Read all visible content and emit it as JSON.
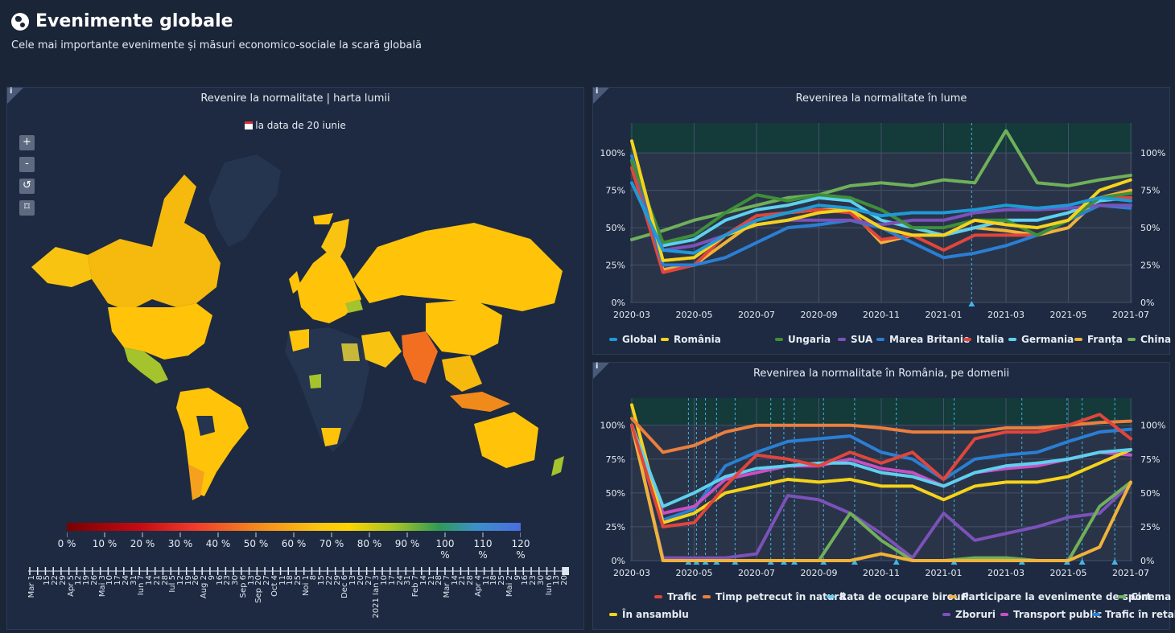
{
  "header": {
    "title": "Evenimente globale",
    "subtitle": "Cele mai importante evenimente și măsuri economico-sociale la scară globală"
  },
  "map_panel": {
    "info": "i",
    "title": "Revenire la normalitate | harta lumii",
    "date_label": "la data de 20 iunie",
    "zoom": {
      "in": "+",
      "out": "-",
      "reset": "↺",
      "fit": "⌑"
    },
    "legend_labels": [
      "0 %",
      "10 %",
      "20 %",
      "30 %",
      "40 %",
      "50 %",
      "60 %",
      "70 %",
      "80 %",
      "90 %",
      "100 %",
      "110 %",
      "120 %"
    ],
    "timeline_labels": [
      "Mar 1",
      "8",
      "15",
      "22",
      "29",
      "Apr 5",
      "12",
      "19",
      "26",
      "Mai 3",
      "10",
      "17",
      "24",
      "31",
      "Iun 7",
      "14",
      "21",
      "28",
      "Iul 5",
      "12",
      "19",
      "26",
      "Aug 2",
      "9",
      "16",
      "23",
      "30",
      "Sep 6",
      "13",
      "Sep 20",
      "27",
      "Oct 4",
      "11",
      "18",
      "25",
      "Noi 1",
      "8",
      "15",
      "22",
      "29",
      "Dec 6",
      "13",
      "20",
      "27",
      "2021 Ian 3",
      "10",
      "17",
      "24",
      "31",
      "Feb 7",
      "14",
      "21",
      "28",
      "Mar 7",
      "14",
      "21",
      "28",
      "Apr 4",
      "11",
      "18",
      "25",
      "Mai 2",
      "9",
      "16",
      "23",
      "30",
      "Iun 6",
      "13",
      "20"
    ]
  },
  "world_panel": {
    "info": "i",
    "title": "Revenirea la normalitate în lume",
    "legend": [
      {
        "name": "Global",
        "color": "#1e9ad6"
      },
      {
        "name": "România",
        "color": "#f6d31b"
      },
      {
        "name": "Ungaria",
        "color": "#3f8f3a"
      },
      {
        "name": "SUA",
        "color": "#7b52b9"
      },
      {
        "name": "Marea Britanie",
        "color": "#2a7fd4"
      },
      {
        "name": "Italia",
        "color": "#e0463c"
      },
      {
        "name": "Germania",
        "color": "#5ed0ee"
      },
      {
        "name": "Franța",
        "color": "#f0b23a"
      },
      {
        "name": "China",
        "color": "#6fb05a"
      }
    ]
  },
  "ro_panel": {
    "info": "i",
    "title": "Revenirea la normalitate în România, pe domenii",
    "legend": [
      {
        "name": "Trafic",
        "color": "#e0463c"
      },
      {
        "name": "Timp petrecut în natură",
        "color": "#ec7f3d"
      },
      {
        "name": "Rata de ocupare birouri",
        "color": "#5ed0ee"
      },
      {
        "name": "Participare la evenimente de sport",
        "color": "#f0b23a"
      },
      {
        "name": "Cinema",
        "color": "#6fb05a"
      },
      {
        "name": "În ansamblu",
        "color": "#f6d31b"
      },
      {
        "name": "Zboruri",
        "color": "#7b52b9"
      },
      {
        "name": "Transport public",
        "color": "#c84fc4"
      },
      {
        "name": "Trafic în retail",
        "color": "#2a7fd4"
      }
    ]
  },
  "chart_data": [
    {
      "type": "line",
      "title": "Revenirea la normalitate în lume",
      "x_ticks": [
        "2020-03",
        "2020-05",
        "2020-07",
        "2020-09",
        "2020-11",
        "2021-01",
        "2021-03",
        "2021-05",
        "2021-07"
      ],
      "y_ticks": [
        "0%",
        "25%",
        "50%",
        "75%",
        "100%"
      ],
      "ylim": [
        0,
        120
      ],
      "x": [
        "2020-03",
        "2020-04",
        "2020-05",
        "2020-06",
        "2020-07",
        "2020-08",
        "2020-09",
        "2020-10",
        "2020-11",
        "2020-12",
        "2021-01",
        "2021-02",
        "2021-03",
        "2021-04",
        "2021-05",
        "2021-06",
        "2021-07"
      ],
      "series": [
        {
          "name": "Global",
          "values": [
            80,
            35,
            33,
            45,
            55,
            60,
            65,
            63,
            58,
            60,
            60,
            62,
            65,
            63,
            65,
            70,
            68
          ]
        },
        {
          "name": "România",
          "values": [
            108,
            28,
            30,
            45,
            52,
            55,
            60,
            62,
            50,
            45,
            45,
            55,
            52,
            50,
            55,
            75,
            82
          ]
        },
        {
          "name": "Ungaria",
          "values": [
            95,
            40,
            45,
            60,
            72,
            68,
            72,
            70,
            62,
            50,
            50,
            55,
            55,
            45,
            55,
            70,
            73
          ]
        },
        {
          "name": "SUA",
          "values": [
            95,
            35,
            38,
            45,
            52,
            55,
            55,
            55,
            52,
            55,
            55,
            60,
            62,
            62,
            63,
            65,
            65
          ]
        },
        {
          "name": "Marea Britanie",
          "values": [
            98,
            25,
            25,
            30,
            40,
            50,
            52,
            55,
            50,
            40,
            30,
            33,
            38,
            45,
            55,
            65,
            63
          ]
        },
        {
          "name": "Italia",
          "values": [
            90,
            20,
            25,
            45,
            58,
            60,
            62,
            60,
            42,
            45,
            35,
            45,
            45,
            45,
            55,
            70,
            70
          ]
        },
        {
          "name": "Germania",
          "values": [
            95,
            38,
            42,
            55,
            62,
            65,
            70,
            68,
            55,
            50,
            45,
            50,
            55,
            55,
            60,
            68,
            70
          ]
        },
        {
          "name": "Franța",
          "values": [
            95,
            22,
            25,
            40,
            55,
            60,
            62,
            62,
            40,
            45,
            45,
            50,
            48,
            45,
            50,
            70,
            75
          ]
        },
        {
          "name": "China",
          "values": [
            42,
            48,
            55,
            60,
            65,
            70,
            72,
            78,
            80,
            78,
            82,
            80,
            115,
            80,
            78,
            82,
            85
          ]
        }
      ]
    },
    {
      "type": "line",
      "title": "Revenirea la normalitate în România, pe domenii",
      "x_ticks": [
        "2020-03",
        "2020-05",
        "2020-07",
        "2020-09",
        "2020-11",
        "2021-01",
        "2021-03",
        "2021-05",
        "2021-07"
      ],
      "y_ticks": [
        "0%",
        "25%",
        "50%",
        "75%",
        "100%"
      ],
      "ylim": [
        0,
        120
      ],
      "x": [
        "2020-03",
        "2020-04",
        "2020-05",
        "2020-06",
        "2020-07",
        "2020-08",
        "2020-09",
        "2020-10",
        "2020-11",
        "2020-12",
        "2021-01",
        "2021-02",
        "2021-03",
        "2021-04",
        "2021-05",
        "2021-06",
        "2021-07"
      ],
      "series": [
        {
          "name": "Trafic",
          "values": [
            100,
            25,
            28,
            55,
            78,
            75,
            70,
            80,
            72,
            80,
            60,
            90,
            95,
            95,
            100,
            108,
            90
          ]
        },
        {
          "name": "Timp petrecut în natură",
          "values": [
            105,
            80,
            85,
            95,
            100,
            100,
            100,
            100,
            98,
            95,
            95,
            95,
            98,
            98,
            100,
            102,
            103
          ]
        },
        {
          "name": "Rata de ocupare birouri",
          "values": [
            100,
            40,
            50,
            62,
            68,
            70,
            72,
            72,
            65,
            62,
            55,
            65,
            70,
            72,
            75,
            80,
            82
          ]
        },
        {
          "name": "Participare la evenimente de sport",
          "values": [
            100,
            0,
            0,
            0,
            0,
            0,
            0,
            0,
            5,
            0,
            0,
            0,
            0,
            0,
            0,
            10,
            58
          ]
        },
        {
          "name": "Cinema",
          "values": [
            100,
            0,
            0,
            0,
            0,
            0,
            0,
            35,
            15,
            0,
            0,
            2,
            2,
            0,
            0,
            40,
            58
          ]
        },
        {
          "name": "În ansamblu",
          "values": [
            115,
            28,
            35,
            50,
            55,
            60,
            58,
            60,
            55,
            55,
            45,
            55,
            58,
            58,
            62,
            72,
            82
          ]
        },
        {
          "name": "Zboruri",
          "values": [
            100,
            2,
            2,
            2,
            5,
            48,
            45,
            35,
            20,
            2,
            35,
            15,
            20,
            25,
            32,
            35,
            57
          ]
        },
        {
          "name": "Transport public",
          "values": [
            100,
            35,
            40,
            60,
            65,
            70,
            70,
            75,
            68,
            65,
            55,
            65,
            68,
            70,
            75,
            80,
            78
          ]
        },
        {
          "name": "Trafic în retail",
          "values": [
            100,
            30,
            38,
            70,
            80,
            88,
            90,
            92,
            80,
            75,
            60,
            75,
            78,
            80,
            88,
            95,
            97
          ]
        }
      ]
    }
  ]
}
